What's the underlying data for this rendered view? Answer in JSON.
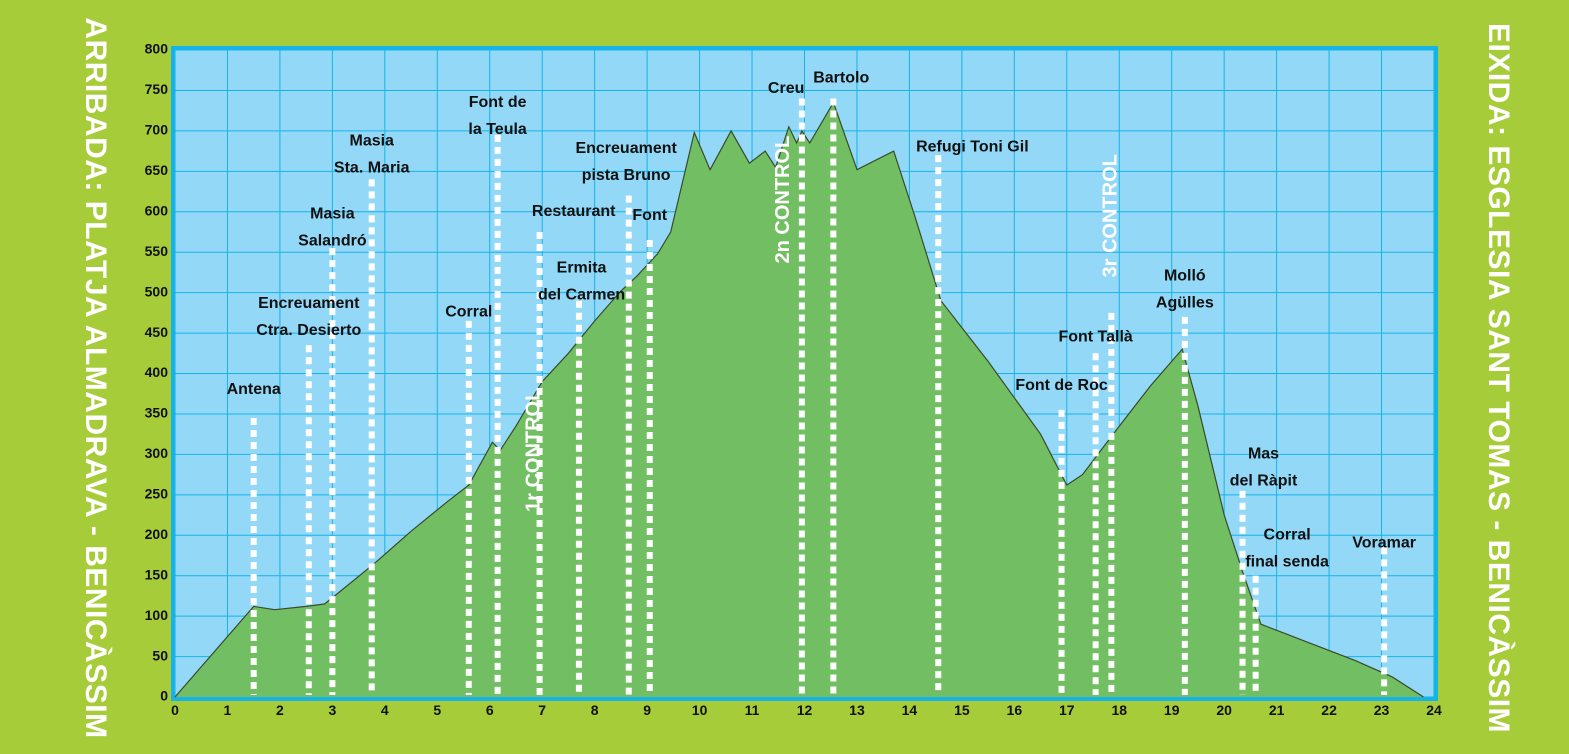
{
  "chart_data": {
    "type": "area",
    "title": "",
    "xlabel": "",
    "ylabel": "",
    "xlim": [
      0,
      24
    ],
    "ylim": [
      0,
      800
    ],
    "xticks": [
      "0",
      "1",
      "2",
      "3",
      "4",
      "5",
      "6",
      "7",
      "8",
      "9",
      "10",
      "11",
      "12",
      "13",
      "14",
      "15",
      "16",
      "17",
      "18",
      "19",
      "20",
      "21",
      "22",
      "23",
      "24"
    ],
    "yticks": [
      "0",
      "50",
      "100",
      "150",
      "200",
      "250",
      "300",
      "350",
      "400",
      "450",
      "500",
      "550",
      "600",
      "650",
      "700",
      "750",
      "800"
    ],
    "grid": true,
    "colors": {
      "background": "#a6cc39",
      "plot": "#93d8f7",
      "frame": "#16b3e9",
      "fill": "#72be63",
      "line": "#3a4a2a",
      "marker": "#ffffff"
    },
    "profile": [
      [
        0,
        0
      ],
      [
        1.5,
        112
      ],
      [
        1.9,
        108
      ],
      [
        2.5,
        112
      ],
      [
        2.85,
        115
      ],
      [
        3.1,
        128
      ],
      [
        3.8,
        165
      ],
      [
        4.5,
        205
      ],
      [
        5.2,
        242
      ],
      [
        5.6,
        262
      ],
      [
        6.05,
        315
      ],
      [
        6.2,
        305
      ],
      [
        6.5,
        335
      ],
      [
        7.0,
        390
      ],
      [
        7.5,
        425
      ],
      [
        8.0,
        465
      ],
      [
        8.5,
        502
      ],
      [
        8.8,
        520
      ],
      [
        9.2,
        548
      ],
      [
        9.45,
        575
      ],
      [
        9.9,
        698
      ],
      [
        10.2,
        652
      ],
      [
        10.6,
        700
      ],
      [
        10.95,
        660
      ],
      [
        11.25,
        675
      ],
      [
        11.45,
        655
      ],
      [
        11.7,
        705
      ],
      [
        11.85,
        685
      ],
      [
        11.95,
        700
      ],
      [
        12.1,
        685
      ],
      [
        12.55,
        735
      ],
      [
        13.0,
        652
      ],
      [
        13.7,
        675
      ],
      [
        14.1,
        595
      ],
      [
        14.6,
        490
      ],
      [
        15.5,
        415
      ],
      [
        16.5,
        325
      ],
      [
        17.0,
        262
      ],
      [
        17.3,
        275
      ],
      [
        18.0,
        335
      ],
      [
        18.6,
        385
      ],
      [
        19.2,
        430
      ],
      [
        19.5,
        360
      ],
      [
        20.0,
        225
      ],
      [
        20.35,
        155
      ],
      [
        20.7,
        90
      ],
      [
        21.5,
        70
      ],
      [
        22.5,
        45
      ],
      [
        23.2,
        25
      ],
      [
        23.8,
        0
      ]
    ],
    "markers": [
      {
        "x": 1.5,
        "top": 345,
        "label": [
          "Antena"
        ],
        "label_y": 380
      },
      {
        "x": 2.55,
        "top": 435,
        "label": [
          "Encreuament",
          "Ctra. Desierto"
        ],
        "label_y": 486
      },
      {
        "x": 3.0,
        "top": 555,
        "label": [
          "Masia",
          "Salandró"
        ],
        "label_y": 597
      },
      {
        "x": 3.75,
        "top": 640,
        "label": [
          "Masia",
          "Sta. Maria"
        ],
        "label_y": 687
      },
      {
        "x": 5.6,
        "top": 465,
        "label": [
          "Corral"
        ],
        "label_y": 476
      },
      {
        "x": 6.15,
        "top": 695,
        "label": [
          "Font de",
          "la Teula"
        ],
        "label_y": 735
      },
      {
        "x": 6.95,
        "top": 575,
        "label": [
          "Restaurant"
        ],
        "label_y": 600,
        "label_x": 7.6
      },
      {
        "x": 7.7,
        "top": 490,
        "label": [
          "Ermita",
          "del Carmen"
        ],
        "label_y": 530,
        "label_x": 7.75
      },
      {
        "x": 8.65,
        "top": 620,
        "label": [
          "Encreuament",
          "pista Bruno"
        ],
        "label_y": 678,
        "label_x": 8.6
      },
      {
        "x": 9.05,
        "top": 565,
        "label": [
          "Font"
        ],
        "label_y": 595
      },
      {
        "x": 11.95,
        "top": 740,
        "label": [
          "Creu"
        ],
        "label_y": 752,
        "label_x": 11.65
      },
      {
        "x": 12.55,
        "top": 740,
        "label": [
          "Bartolo"
        ],
        "label_y": 765,
        "label_x": 12.7
      },
      {
        "x": 14.55,
        "top": 670,
        "label": [
          "Refugi Toni Gil"
        ],
        "label_y": 680,
        "label_x": 15.2
      },
      {
        "x": 16.9,
        "top": 355,
        "label": [
          "Font de Roc"
        ],
        "label_y": 385
      },
      {
        "x": 17.55,
        "top": 425,
        "label": [
          "Font Tallà"
        ],
        "label_y": 445
      },
      {
        "x": 17.85,
        "top": 475,
        "label": [],
        "label_y": 0
      },
      {
        "x": 19.25,
        "top": 470,
        "label": [
          "Molló",
          "Agülles"
        ],
        "label_y": 520
      },
      {
        "x": 20.35,
        "top": 255,
        "label": [
          "Mas",
          "del Ràpit"
        ],
        "label_y": 300,
        "label_x": 20.75
      },
      {
        "x": 20.6,
        "top": 150,
        "label": [
          "Corral",
          "final senda"
        ],
        "label_y": 200,
        "label_x": 21.2
      },
      {
        "x": 23.05,
        "top": 185,
        "label": [
          "Voramar"
        ],
        "label_y": 190
      }
    ],
    "controls": [
      {
        "x": 6.85,
        "y_center": 305,
        "text": "1r CONTROL"
      },
      {
        "x": 11.6,
        "y_center": 615,
        "text": "2n CONTROL"
      },
      {
        "x": 17.85,
        "y_center": 595,
        "text": "3r CONTROL"
      }
    ]
  },
  "side_labels": {
    "left": "ARRIBADA: PLATJA ALMADRAVA - BENICÀSSIM",
    "right": "EIXIDA: ESGLESIA SANT TOMAS - BENICÀSSIM"
  }
}
